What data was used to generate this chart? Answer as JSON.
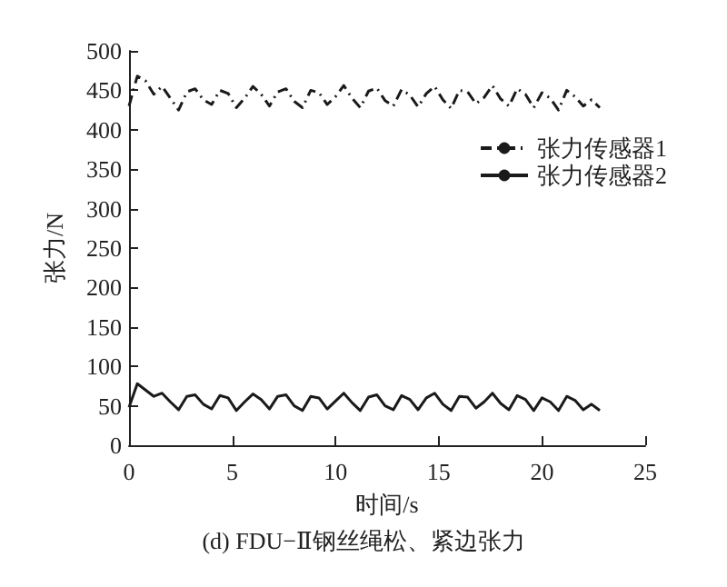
{
  "chart_data": {
    "type": "line",
    "title": "(d) FDU−Ⅱ钢丝绳松、紧边张力",
    "xlabel": "时间/s",
    "ylabel": "张力/N",
    "x": [
      0,
      0.4,
      0.8,
      1.2,
      1.6,
      2,
      2.4,
      2.8,
      3.2,
      3.6,
      4,
      4.4,
      4.8,
      5.2,
      5.6,
      6,
      6.4,
      6.8,
      7.2,
      7.6,
      8,
      8.4,
      8.8,
      9.2,
      9.6,
      10,
      10.4,
      10.8,
      11.2,
      11.6,
      12,
      12.4,
      12.8,
      13.2,
      13.6,
      14,
      14.4,
      14.8,
      15.2,
      15.6,
      16,
      16.4,
      16.8,
      17.2,
      17.6,
      18,
      18.4,
      18.8,
      19.2,
      19.6,
      20,
      20.4,
      20.8,
      21.2,
      21.6,
      22,
      22.4,
      22.8
    ],
    "series": [
      {
        "name": "张力传感器1",
        "color": "#1a1a1a",
        "line_style": "dashdot",
        "values": [
          430,
          468,
          462,
          445,
          455,
          440,
          425,
          448,
          452,
          438,
          432,
          450,
          446,
          428,
          440,
          455,
          445,
          430,
          448,
          452,
          436,
          428,
          450,
          447,
          432,
          442,
          456,
          440,
          428,
          449,
          453,
          437,
          430,
          451,
          444,
          429,
          446,
          455,
          438,
          427,
          450,
          448,
          433,
          441,
          456,
          439,
          430,
          452,
          445,
          428,
          447,
          440,
          425,
          450,
          442,
          430,
          438,
          428
        ]
      },
      {
        "name": "张力传感器2",
        "color": "#1a1a1a",
        "line_style": "solid",
        "values": [
          48,
          78,
          70,
          62,
          66,
          55,
          45,
          62,
          64,
          52,
          46,
          63,
          60,
          44,
          55,
          65,
          58,
          46,
          62,
          64,
          50,
          44,
          62,
          60,
          46,
          56,
          66,
          54,
          44,
          61,
          64,
          50,
          45,
          63,
          58,
          45,
          60,
          66,
          52,
          44,
          62,
          61,
          47,
          55,
          66,
          53,
          45,
          63,
          58,
          44,
          60,
          55,
          44,
          62,
          57,
          45,
          52,
          44
        ]
      }
    ],
    "xlim": [
      0,
      25
    ],
    "xticks": [
      0,
      5,
      10,
      15,
      20,
      25
    ],
    "ylim": [
      0,
      500
    ],
    "yticks": [
      0,
      50,
      100,
      150,
      200,
      250,
      300,
      350,
      400,
      450,
      500
    ],
    "grid": false,
    "legend": "top right",
    "marker": "none"
  }
}
